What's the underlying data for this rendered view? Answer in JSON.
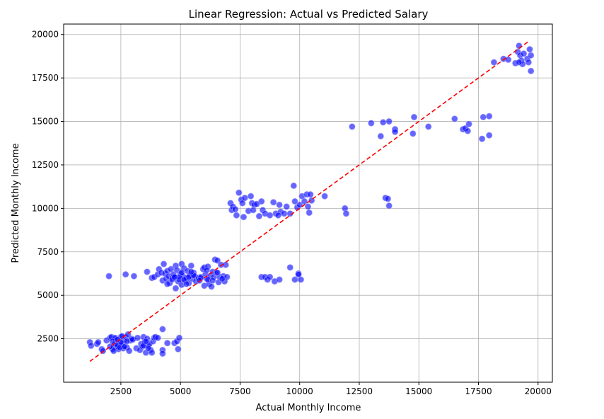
{
  "chart_data": {
    "type": "scatter",
    "title": "Linear Regression: Actual vs Predicted Salary",
    "xlabel": "Actual Monthly Income",
    "ylabel": "Predicted Monthly Income",
    "xlim": [
      100,
      20600
    ],
    "ylim": [
      0,
      20600
    ],
    "xticks": [
      2500,
      5000,
      7500,
      10000,
      12500,
      15000,
      17500,
      20000
    ],
    "xtick_labels": [
      "2500",
      "5000",
      "7500",
      "10000",
      "12500",
      "15000",
      "17500",
      "20000"
    ],
    "yticks": [
      2500,
      5000,
      7500,
      10000,
      12500,
      15000,
      17500,
      20000
    ],
    "ytick_labels": [
      "2500",
      "5000",
      "7500",
      "10000",
      "12500",
      "15000",
      "17500",
      "20000"
    ],
    "grid": true,
    "point_color": "#0000ff",
    "point_edge_color": "#9999ff",
    "point_alpha": 0.6,
    "reference_line": {
      "x": [
        1200,
        19600
      ],
      "y": [
        1200,
        19600
      ],
      "color": "#ff0000",
      "style": "dashed"
    },
    "points": [
      [
        1200,
        2300
      ],
      [
        1250,
        2100
      ],
      [
        1500,
        2200
      ],
      [
        1550,
        2300
      ],
      [
        1700,
        1900
      ],
      [
        1750,
        1800
      ],
      [
        1900,
        2400
      ],
      [
        2050,
        2550
      ],
      [
        2100,
        2600
      ],
      [
        2150,
        1900
      ],
      [
        2200,
        2000
      ],
      [
        2250,
        2200
      ],
      [
        2300,
        2500
      ],
      [
        2350,
        2050
      ],
      [
        2400,
        1900
      ],
      [
        2450,
        2300
      ],
      [
        2500,
        2600
      ],
      [
        2550,
        2150
      ],
      [
        2600,
        1950
      ],
      [
        2650,
        2400
      ],
      [
        2700,
        2600
      ],
      [
        2750,
        2000
      ],
      [
        2800,
        2750
      ],
      [
        2850,
        1800
      ],
      [
        2900,
        2400
      ],
      [
        2950,
        2500
      ],
      [
        3000,
        2450
      ],
      [
        2250,
        2550
      ],
      [
        2350,
        2150
      ],
      [
        2150,
        2350
      ],
      [
        2450,
        2000
      ],
      [
        2650,
        2050
      ],
      [
        2550,
        2650
      ],
      [
        2050,
        2050
      ],
      [
        2200,
        1800
      ],
      [
        2500,
        2300
      ],
      [
        2350,
        2450
      ],
      [
        2750,
        2350
      ],
      [
        3150,
        1950
      ],
      [
        3200,
        2550
      ],
      [
        3300,
        1850
      ],
      [
        3350,
        2200
      ],
      [
        3400,
        2050
      ],
      [
        3450,
        2600
      ],
      [
        3500,
        2300
      ],
      [
        3550,
        1700
      ],
      [
        3600,
        2500
      ],
      [
        3650,
        2100
      ],
      [
        3700,
        2200
      ],
      [
        3750,
        1850
      ],
      [
        3800,
        1700
      ],
      [
        3850,
        2350
      ],
      [
        3900,
        2550
      ],
      [
        3950,
        2600
      ],
      [
        4050,
        2550
      ],
      [
        4250,
        1850
      ],
      [
        4250,
        1650
      ],
      [
        4250,
        3050
      ],
      [
        4450,
        2250
      ],
      [
        4750,
        2250
      ],
      [
        4850,
        2350
      ],
      [
        4900,
        1900
      ],
      [
        4950,
        2550
      ],
      [
        3450,
        2100
      ],
      [
        3550,
        2350
      ],
      [
        3650,
        1950
      ],
      [
        2000,
        6100
      ],
      [
        2700,
        6200
      ],
      [
        3050,
        6100
      ],
      [
        3600,
        6350
      ],
      [
        3800,
        6000
      ],
      [
        3900,
        6050
      ],
      [
        4050,
        6200
      ],
      [
        4100,
        6500
      ],
      [
        4200,
        6300
      ],
      [
        4250,
        5850
      ],
      [
        4300,
        6800
      ],
      [
        4350,
        6250
      ],
      [
        4400,
        5950
      ],
      [
        4450,
        6400
      ],
      [
        4500,
        6100
      ],
      [
        4550,
        5700
      ],
      [
        4600,
        6500
      ],
      [
        4650,
        6000
      ],
      [
        4700,
        6200
      ],
      [
        4750,
        6050
      ],
      [
        4800,
        5400
      ],
      [
        4800,
        6700
      ],
      [
        4850,
        6450
      ],
      [
        4900,
        5800
      ],
      [
        4950,
        5900
      ],
      [
        5000,
        6250
      ],
      [
        5050,
        6800
      ],
      [
        5050,
        5600
      ],
      [
        5100,
        6100
      ],
      [
        5150,
        6550
      ],
      [
        5200,
        5850
      ],
      [
        5250,
        6000
      ],
      [
        5300,
        6400
      ],
      [
        5350,
        5700
      ],
      [
        5400,
        6150
      ],
      [
        5450,
        6700
      ],
      [
        5500,
        5950
      ],
      [
        5550,
        6300
      ],
      [
        5600,
        6100
      ],
      [
        5650,
        5800
      ],
      [
        5750,
        6000
      ],
      [
        5850,
        6050
      ],
      [
        5950,
        6500
      ],
      [
        6000,
        6600
      ],
      [
        6000,
        5550
      ],
      [
        6050,
        6200
      ],
      [
        6100,
        5950
      ],
      [
        6150,
        6650
      ],
      [
        6200,
        5650
      ],
      [
        6250,
        6100
      ],
      [
        6300,
        5500
      ],
      [
        6350,
        6350
      ],
      [
        6400,
        6050
      ],
      [
        6450,
        7050
      ],
      [
        6500,
        6300
      ],
      [
        6550,
        7000
      ],
      [
        6600,
        5750
      ],
      [
        6650,
        6050
      ],
      [
        6700,
        6750
      ],
      [
        6800,
        6100
      ],
      [
        6850,
        5800
      ],
      [
        6900,
        6750
      ],
      [
        6950,
        6050
      ],
      [
        4450,
        5650
      ],
      [
        4650,
        5900
      ],
      [
        4950,
        6050
      ],
      [
        5150,
        5900
      ],
      [
        5350,
        6050
      ],
      [
        5550,
        6150
      ],
      [
        5850,
        6000
      ],
      [
        6150,
        5900
      ],
      [
        6350,
        5850
      ],
      [
        6550,
        6300
      ],
      [
        5250,
        5650
      ],
      [
        6750,
        5950
      ],
      [
        5050,
        6300
      ],
      [
        5450,
        6350
      ],
      [
        4750,
        6050
      ],
      [
        6100,
        6450
      ],
      [
        5800,
        5850
      ],
      [
        7100,
        10300
      ],
      [
        7150,
        9900
      ],
      [
        7200,
        10100
      ],
      [
        7300,
        9950
      ],
      [
        7350,
        9600
      ],
      [
        7450,
        10900
      ],
      [
        7550,
        10500
      ],
      [
        7600,
        10300
      ],
      [
        7650,
        9500
      ],
      [
        7700,
        10600
      ],
      [
        7850,
        9850
      ],
      [
        7950,
        10700
      ],
      [
        8000,
        10300
      ],
      [
        8050,
        9900
      ],
      [
        8100,
        10200
      ],
      [
        8300,
        9550
      ],
      [
        8400,
        10400
      ],
      [
        8450,
        9900
      ],
      [
        8550,
        9700
      ],
      [
        8750,
        9600
      ],
      [
        8900,
        10350
      ],
      [
        9000,
        9700
      ],
      [
        9150,
        10200
      ],
      [
        9200,
        9800
      ],
      [
        9350,
        9700
      ],
      [
        9450,
        10100
      ],
      [
        9600,
        9700
      ],
      [
        9750,
        11300
      ],
      [
        9800,
        10400
      ],
      [
        9900,
        10050
      ],
      [
        10000,
        10200
      ],
      [
        10100,
        10700
      ],
      [
        10200,
        10400
      ],
      [
        10300,
        10800
      ],
      [
        10350,
        10100
      ],
      [
        10400,
        9750
      ],
      [
        10450,
        10800
      ],
      [
        10500,
        10450
      ],
      [
        11050,
        10700
      ],
      [
        11900,
        10000
      ],
      [
        11950,
        9700
      ],
      [
        13600,
        10600
      ],
      [
        13700,
        10550
      ],
      [
        13750,
        10150
      ],
      [
        9100,
        9600
      ],
      [
        8200,
        10250
      ],
      [
        8400,
        6050
      ],
      [
        8550,
        6050
      ],
      [
        8650,
        5900
      ],
      [
        8750,
        6050
      ],
      [
        8950,
        5800
      ],
      [
        9150,
        5900
      ],
      [
        9600,
        6600
      ],
      [
        9800,
        5900
      ],
      [
        9950,
        6250
      ],
      [
        10050,
        5900
      ],
      [
        9950,
        6200
      ],
      [
        12200,
        14700
      ],
      [
        13000,
        14900
      ],
      [
        13400,
        14150
      ],
      [
        13500,
        14950
      ],
      [
        13750,
        15000
      ],
      [
        14000,
        14550
      ],
      [
        14000,
        14400
      ],
      [
        14750,
        14300
      ],
      [
        14800,
        15250
      ],
      [
        15400,
        14700
      ],
      [
        16500,
        15150
      ],
      [
        16850,
        14550
      ],
      [
        16950,
        14600
      ],
      [
        17050,
        14450
      ],
      [
        17100,
        14850
      ],
      [
        17650,
        14000
      ],
      [
        17700,
        15250
      ],
      [
        17950,
        15300
      ],
      [
        17950,
        14200
      ],
      [
        18150,
        18400
      ],
      [
        18550,
        18600
      ],
      [
        18750,
        18550
      ],
      [
        19050,
        18350
      ],
      [
        19150,
        19000
      ],
      [
        19200,
        19350
      ],
      [
        19250,
        18800
      ],
      [
        19300,
        18500
      ],
      [
        19350,
        18300
      ],
      [
        19400,
        18900
      ],
      [
        19550,
        18600
      ],
      [
        19600,
        18400
      ],
      [
        19650,
        19150
      ],
      [
        19700,
        18800
      ],
      [
        19700,
        17900
      ],
      [
        19200,
        18400
      ]
    ]
  }
}
